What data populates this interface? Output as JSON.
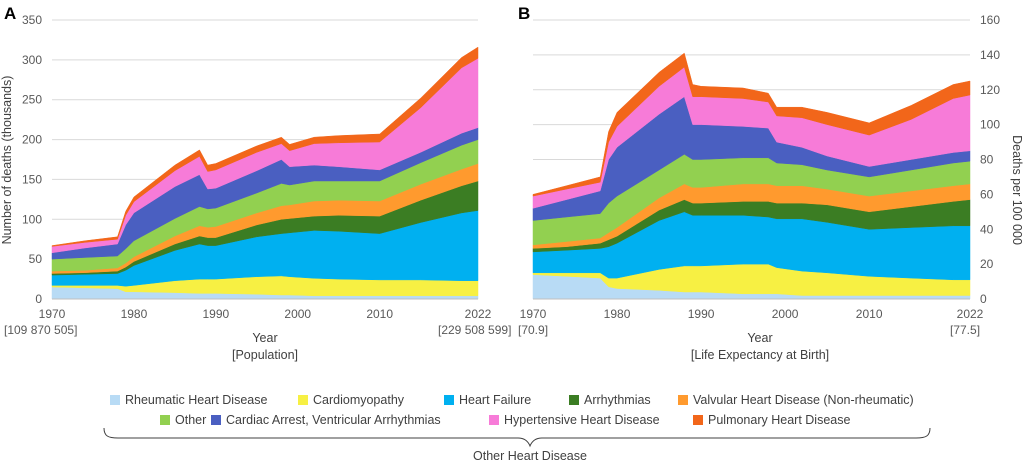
{
  "chart_data": {
    "type": "area",
    "stacked": true,
    "legend": {
      "bracket_label": "Other Heart Disease",
      "placement": "bottom"
    },
    "series_meta": [
      {
        "key": "rheumatic",
        "name": "Rheumatic Heart Disease",
        "color": "#b8dbf5"
      },
      {
        "key": "cardiomyopathy",
        "name": "Cardiomyopathy",
        "color": "#f7f043"
      },
      {
        "key": "heart_failure",
        "name": "Heart Failure",
        "color": "#00b0f0"
      },
      {
        "key": "arrhythmias",
        "name": "Arrhythmias",
        "color": "#3b7d23"
      },
      {
        "key": "valvular",
        "name": "Valvular Heart Disease (Non-rheumatic)",
        "color": "#ff9a2e"
      },
      {
        "key": "other",
        "name": "Other",
        "color": "#92d050"
      },
      {
        "key": "cardiac_arrest",
        "name": "Cardiac Arrest, Ventricular Arrhythmias",
        "color": "#4a5fc1"
      },
      {
        "key": "hypertensive",
        "name": "Hypertensive Heart Disease",
        "color": "#f77bd8"
      },
      {
        "key": "pulmonary",
        "name": "Pulmonary Heart Disease",
        "color": "#f2661a"
      }
    ],
    "panels": [
      {
        "letter": "A",
        "xlabel": "Year",
        "xlabel2": "[Population]",
        "ylabel": "Number of deaths (thousands)",
        "ylabel_side": "left",
        "ylim": [
          0,
          350
        ],
        "yticks": [
          0,
          50,
          100,
          150,
          200,
          250,
          300,
          350
        ],
        "xlim": [
          1970,
          2022
        ],
        "xticks": [
          "1970",
          "1980",
          "1990",
          "2000",
          "2010",
          "2022"
        ],
        "x_start_note": "[109 870 505]",
        "x_end_note": "[229 508 599]",
        "x": [
          1970,
          1974,
          1978,
          1979,
          1980,
          1985,
          1988,
          1989,
          1990,
          1995,
          1998,
          1999,
          2002,
          2005,
          2010,
          2015,
          2020,
          2022
        ],
        "series": {
          "rheumatic": [
            15,
            14,
            13,
            9,
            9,
            8,
            7,
            7,
            7,
            6,
            5,
            5,
            4,
            4,
            4,
            4,
            4,
            4
          ],
          "cardiomyopathy": [
            2,
            3,
            4,
            7,
            8,
            15,
            18,
            18,
            18,
            22,
            24,
            23,
            22,
            21,
            20,
            20,
            19,
            19
          ],
          "heart_failure": [
            13,
            14,
            15,
            20,
            25,
            38,
            44,
            42,
            42,
            50,
            53,
            55,
            60,
            60,
            58,
            72,
            85,
            88
          ],
          "arrhythmias": [
            2,
            2,
            3,
            4,
            5,
            8,
            10,
            10,
            10,
            15,
            18,
            18,
            18,
            20,
            22,
            28,
            34,
            37
          ],
          "valvular": [
            3,
            3,
            4,
            5,
            6,
            10,
            13,
            13,
            14,
            15,
            17,
            17,
            19,
            19,
            19,
            20,
            21,
            22
          ],
          "other": [
            15,
            16,
            15,
            18,
            20,
            22,
            24,
            23,
            23,
            25,
            28,
            25,
            25,
            24,
            25,
            27,
            30,
            30
          ],
          "cardiac_arrest": [
            8,
            12,
            15,
            30,
            35,
            40,
            40,
            25,
            25,
            28,
            30,
            23,
            20,
            18,
            14,
            13,
            15,
            15
          ],
          "hypertensive": [
            8,
            7,
            6,
            12,
            14,
            20,
            23,
            22,
            23,
            23,
            20,
            20,
            27,
            30,
            35,
            56,
            82,
            87
          ],
          "pulmonary": [
            1,
            2,
            3,
            5,
            6,
            7,
            8,
            8,
            8,
            8,
            8,
            8,
            8,
            9,
            10,
            12,
            13,
            14
          ]
        }
      },
      {
        "letter": "B",
        "xlabel": "Year",
        "xlabel2": "[Life Expectancy at Birth]",
        "ylabel": "Deaths per 100 000",
        "ylabel_side": "right",
        "ylim": [
          0,
          160
        ],
        "yticks": [
          0,
          20,
          40,
          60,
          80,
          100,
          120,
          140,
          160
        ],
        "xlim": [
          1970,
          2022
        ],
        "xticks": [
          "1970",
          "1980",
          "1990",
          "2000",
          "2010",
          "2022"
        ],
        "x_start_note": "[70.9]",
        "x_end_note": "[77.5]",
        "x": [
          1970,
          1974,
          1978,
          1979,
          1980,
          1985,
          1988,
          1989,
          1990,
          1995,
          1998,
          1999,
          2002,
          2005,
          2010,
          2015,
          2020,
          2022
        ],
        "series": {
          "rheumatic": [
            14,
            13,
            12,
            7,
            6,
            5,
            4,
            4,
            4,
            3,
            3,
            3,
            2,
            2,
            2,
            2,
            2,
            2
          ],
          "cardiomyopathy": [
            1,
            2,
            3,
            5,
            6,
            12,
            15,
            15,
            15,
            17,
            17,
            15,
            14,
            13,
            11,
            10,
            9,
            9
          ],
          "heart_failure": [
            12,
            13,
            14,
            18,
            20,
            28,
            31,
            29,
            29,
            28,
            27,
            28,
            30,
            29,
            27,
            29,
            31,
            31
          ],
          "arrhythmias": [
            2,
            2,
            3,
            4,
            4,
            6,
            7,
            7,
            7,
            8,
            9,
            9,
            9,
            10,
            10,
            12,
            14,
            15
          ],
          "valvular": [
            2,
            3,
            3,
            4,
            5,
            7,
            9,
            9,
            9,
            10,
            10,
            10,
            10,
            9,
            9,
            9,
            9,
            9
          ],
          "other": [
            14,
            14,
            14,
            17,
            18,
            16,
            17,
            16,
            16,
            15,
            15,
            13,
            12,
            11,
            11,
            12,
            13,
            13
          ],
          "cardiac_arrest": [
            7,
            10,
            13,
            25,
            28,
            32,
            33,
            20,
            20,
            18,
            17,
            12,
            10,
            8,
            6,
            6,
            6,
            6
          ],
          "hypertensive": [
            7,
            6,
            5,
            10,
            12,
            16,
            17,
            16,
            16,
            16,
            15,
            15,
            17,
            18,
            18,
            23,
            31,
            32
          ],
          "pulmonary": [
            1,
            2,
            3,
            6,
            8,
            8,
            8,
            7,
            6,
            6,
            5,
            5,
            6,
            7,
            7,
            8,
            8,
            8
          ]
        }
      }
    ]
  }
}
